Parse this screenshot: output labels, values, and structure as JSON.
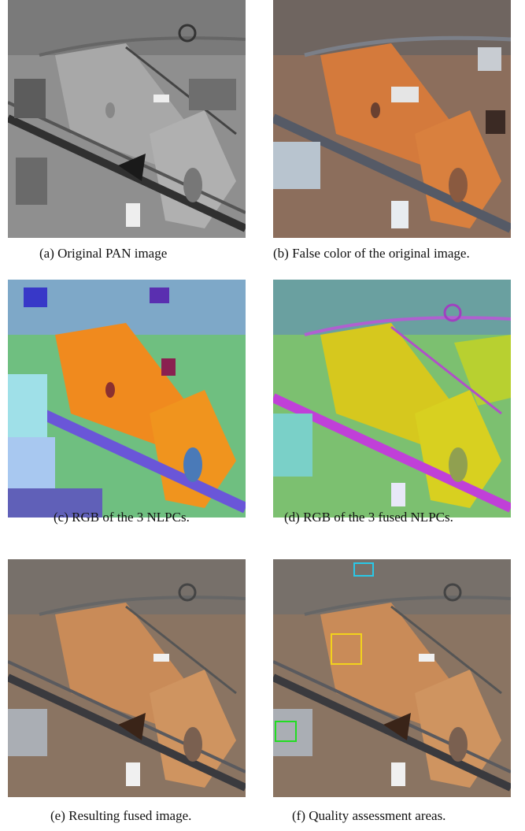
{
  "figure": {
    "panels": [
      {
        "id": "a",
        "caption": "(a) Original PAN image"
      },
      {
        "id": "b",
        "caption": "(b) False color of the original image."
      },
      {
        "id": "c",
        "caption": "(c) RGB of the 3 NLPCs."
      },
      {
        "id": "d",
        "caption": "(d) RGB of the 3 fused NLPCs."
      },
      {
        "id": "e",
        "caption": "(e) Resulting fused image."
      },
      {
        "id": "f",
        "caption": "(f) Quality assessment areas."
      }
    ],
    "assessment_box_colors": [
      "#29c8e8",
      "#f2d21c",
      "#22dd22"
    ]
  }
}
